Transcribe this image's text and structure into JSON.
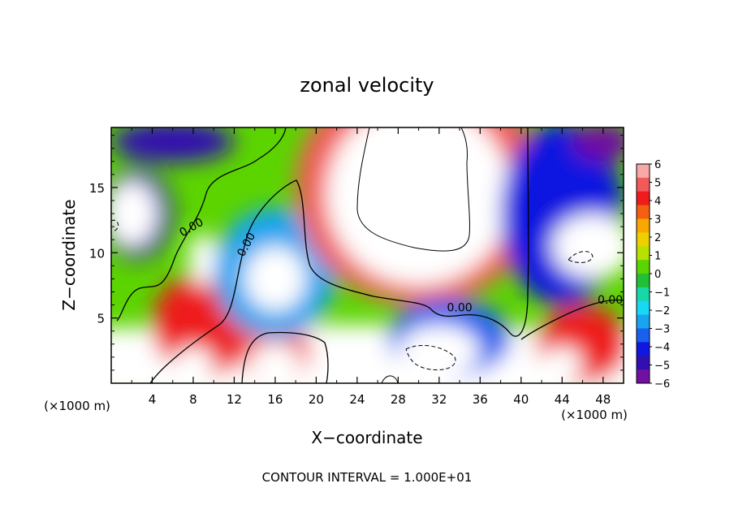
{
  "chart_data": {
    "type": "heatmap",
    "title": "zonal velocity",
    "xlabel": "X−coordinate",
    "ylabel": "Z−coordinate",
    "x_units_left": "(×1000 m)",
    "x_units_right": "(×1000 m)",
    "footer": "CONTOUR INTERVAL = 1.000E+01",
    "xlim": [
      0,
      50
    ],
    "ylim": [
      0,
      19.6
    ],
    "x_ticks": [
      "4",
      "8",
      "12",
      "16",
      "20",
      "24",
      "28",
      "32",
      "36",
      "40",
      "44",
      "48"
    ],
    "x_tick_values": [
      4,
      8,
      12,
      16,
      20,
      24,
      28,
      32,
      36,
      40,
      44,
      48
    ],
    "y_ticks": [
      "5",
      "10",
      "15"
    ],
    "y_tick_values": [
      5,
      10,
      15
    ],
    "contour_labels": [
      {
        "text": "0.00",
        "x": 8,
        "y": 11.7,
        "angle": -30
      },
      {
        "text": "0.00",
        "x": 13.5,
        "y": 10.5,
        "angle": -62
      },
      {
        "text": "0.00",
        "x": 34,
        "y": 5.5,
        "angle": 0
      },
      {
        "text": "0.00",
        "x": 48.7,
        "y": 6.1,
        "angle": 0
      }
    ],
    "colorbar": {
      "labels": [
        "6",
        "5",
        "4",
        "3",
        "2",
        "1",
        "0",
        "−1",
        "−2",
        "−3",
        "−4",
        "−5",
        "−6"
      ],
      "colors": [
        "#f7a8a8",
        "#f25a5a",
        "#ee1c1c",
        "#f46010",
        "#f8a800",
        "#ecd000",
        "#b8e000",
        "#5cd400",
        "#22c034",
        "#18d8a8",
        "#18d8f4",
        "#18a4f0",
        "#1860ee",
        "#1018e0",
        "#3010b0",
        "#7010a0"
      ]
    },
    "regions": [
      {
        "kind": "ellipse",
        "value": 6.5,
        "cx": 24,
        "cy": 1.5,
        "rx": 60,
        "ry": 3
      },
      {
        "kind": "ellipse",
        "value": 4.5,
        "cx": 9,
        "cy": 4.5,
        "rx": 5,
        "ry": 4
      },
      {
        "kind": "ellipse",
        "value": 6.5,
        "cx": 9,
        "cy": 9.5,
        "rx": 1.5,
        "ry": 2
      },
      {
        "kind": "ellipse",
        "value": 5,
        "cx": 16,
        "cy": 2.5,
        "rx": 3.5,
        "ry": 2.5
      },
      {
        "kind": "ellipse",
        "value": 7,
        "cx": 16,
        "cy": 1.5,
        "rx": 2.5,
        "ry": 1.5
      },
      {
        "kind": "ellipse",
        "value": 7,
        "cx": 8,
        "cy": 1.5,
        "rx": 2,
        "ry": 1.3
      },
      {
        "kind": "ellipse",
        "value": 7,
        "cx": 1.5,
        "cy": 1.5,
        "rx": 1.5,
        "ry": 1.5
      },
      {
        "kind": "ellipse",
        "value": -2.5,
        "cx": 16,
        "cy": 8.5,
        "rx": 6,
        "ry": 5
      },
      {
        "kind": "ellipse",
        "value": -6.5,
        "cx": 16,
        "cy": 8,
        "rx": 3,
        "ry": 2.5
      },
      {
        "kind": "ellipse",
        "value": 5,
        "cx": 30,
        "cy": 15,
        "rx": 12,
        "ry": 9
      },
      {
        "kind": "ellipse",
        "value": 7,
        "cx": 30,
        "cy": 14.5,
        "rx": 9,
        "ry": 7
      },
      {
        "kind": "ellipse",
        "value": -4,
        "cx": 44,
        "cy": 13,
        "rx": 6,
        "ry": 7
      },
      {
        "kind": "ellipse",
        "value": -7,
        "cx": 47,
        "cy": 10.5,
        "rx": 4,
        "ry": 2.5
      },
      {
        "kind": "ellipse",
        "value": -5,
        "cx": 2.5,
        "cy": 13,
        "rx": 3.5,
        "ry": 3.5
      },
      {
        "kind": "ellipse",
        "value": -7,
        "cx": 2,
        "cy": 13,
        "rx": 2.5,
        "ry": 2.5
      },
      {
        "kind": "ellipse",
        "value": -5,
        "cx": 6,
        "cy": 18.5,
        "rx": 6,
        "ry": 1.6
      },
      {
        "kind": "ellipse",
        "value": -6,
        "cx": 48,
        "cy": 18.5,
        "rx": 3,
        "ry": 1.5
      },
      {
        "kind": "ellipse",
        "value": -3,
        "cx": 33,
        "cy": 3.5,
        "rx": 6,
        "ry": 3
      },
      {
        "kind": "ellipse",
        "value": -7,
        "cx": 32,
        "cy": 2.5,
        "rx": 4,
        "ry": 2
      },
      {
        "kind": "ellipse",
        "value": 4.5,
        "cx": 46,
        "cy": 3,
        "rx": 4.5,
        "ry": 3
      },
      {
        "kind": "ellipse",
        "value": 7,
        "cx": 44,
        "cy": 1.5,
        "rx": 2,
        "ry": 1.3
      }
    ]
  }
}
